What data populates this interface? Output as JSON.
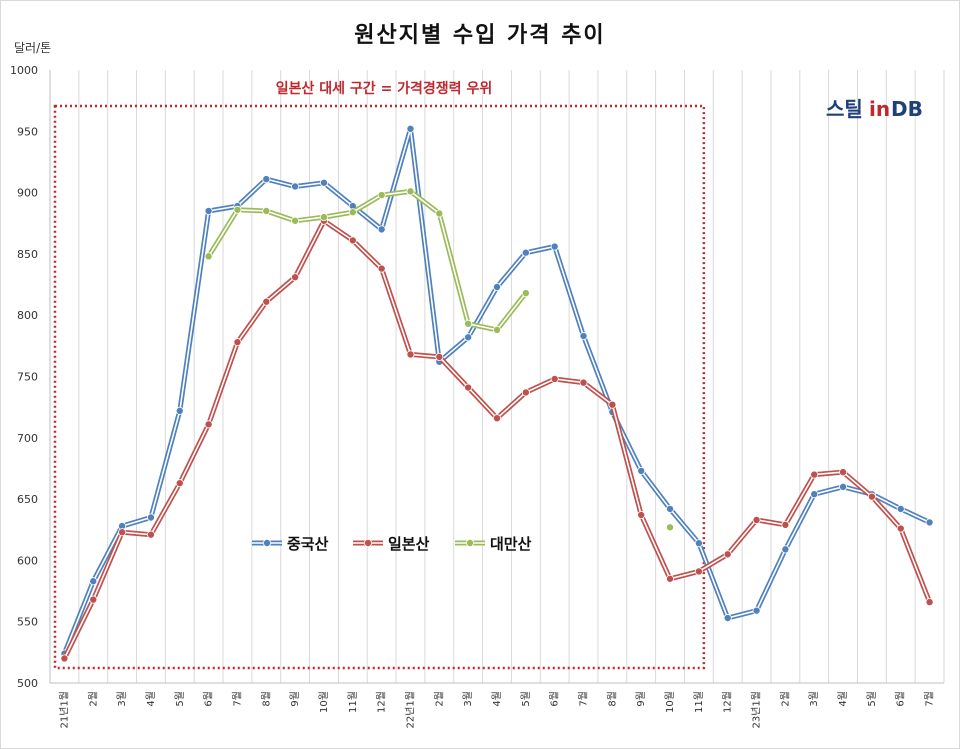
{
  "chart_data": {
    "type": "line",
    "title": "원산지별 수입 가격 추이",
    "ylabel": "달러/톤",
    "ylim": [
      500,
      1000
    ],
    "yticks": [
      500,
      550,
      600,
      650,
      700,
      750,
      800,
      850,
      900,
      950,
      1000
    ],
    "grid": "vertical",
    "legend_position": "center-left",
    "categories": [
      "21년1월",
      "2월",
      "3월",
      "4월",
      "5월",
      "6월",
      "7월",
      "8월",
      "9월",
      "10월",
      "11월",
      "12월",
      "22년1월",
      "2월",
      "3월",
      "4월",
      "5월",
      "6월",
      "7월",
      "8월",
      "9월",
      "10월",
      "11월",
      "12월",
      "23년1월",
      "2월",
      "3월",
      "4월",
      "5월",
      "6월",
      "7월"
    ],
    "series": [
      {
        "name": "중국산",
        "color": "#4f81bd",
        "values": [
          524,
          583,
          628,
          635,
          722,
          885,
          889,
          911,
          905,
          908,
          889,
          870,
          952,
          762,
          782,
          823,
          851,
          856,
          783,
          721,
          673,
          642,
          614,
          553,
          559,
          609,
          654,
          660,
          654,
          642,
          631
        ]
      },
      {
        "name": "일본산",
        "color": "#c0504d",
        "values": [
          520,
          568,
          623,
          621,
          663,
          711,
          778,
          811,
          831,
          877,
          861,
          838,
          768,
          766,
          741,
          716,
          737,
          748,
          745,
          727,
          637,
          585,
          591,
          605,
          633,
          629,
          670,
          672,
          652,
          626,
          566
        ]
      },
      {
        "name": "대만산",
        "color": "#9bbb59",
        "values": [
          null,
          null,
          null,
          null,
          null,
          848,
          886,
          885,
          877,
          880,
          884,
          898,
          901,
          883,
          793,
          788,
          818,
          null,
          null,
          null,
          null,
          627,
          null,
          null,
          null,
          null,
          null,
          null,
          null,
          null,
          null
        ]
      }
    ],
    "annotation": "일본산 대세 구간 = 가격경쟁력 우위",
    "highlight_range": [
      "21년1월",
      "11월"
    ]
  },
  "logo": {
    "part1": "스틸",
    "part2": "in",
    "part3": "DB"
  }
}
